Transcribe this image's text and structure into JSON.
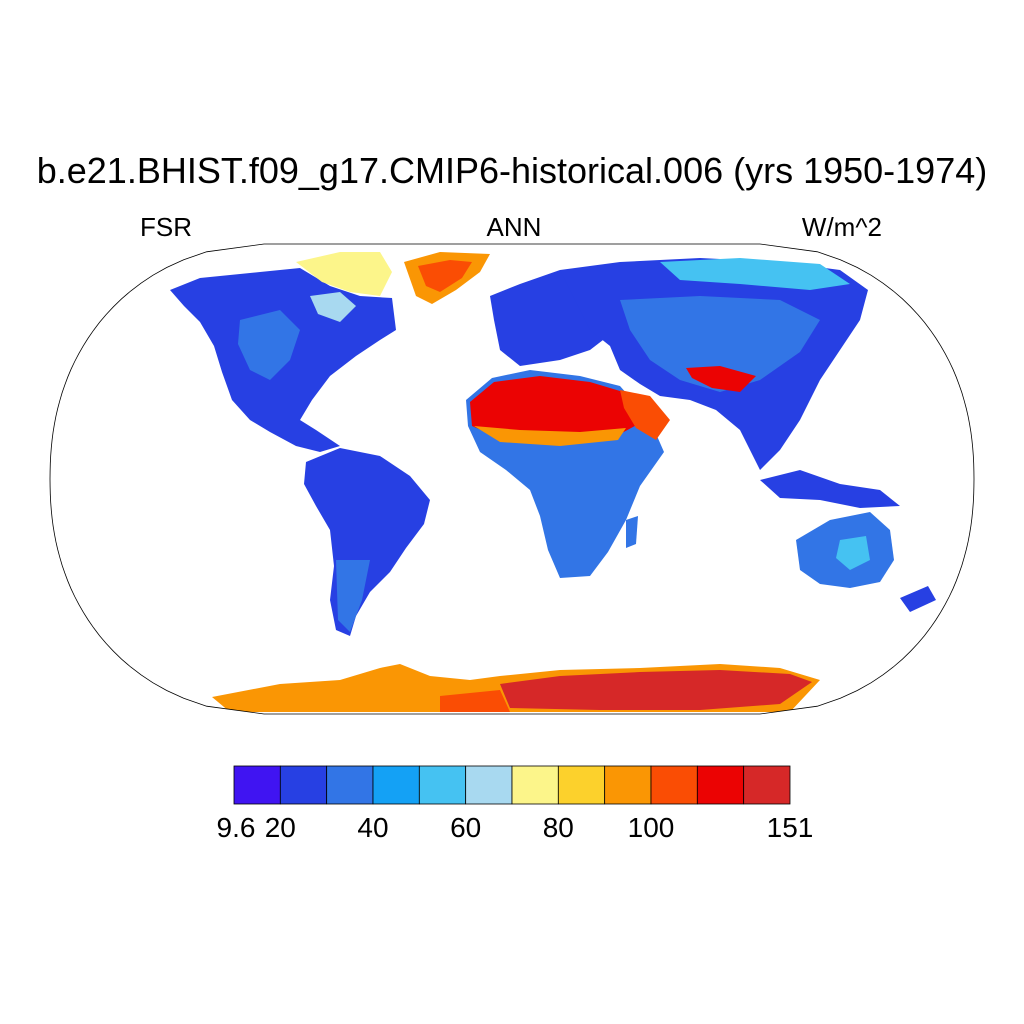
{
  "title": "b.e21.BHIST.f09_g17.CMIP6-historical.006 (yrs 1950-1974)",
  "variable": "FSR",
  "season": "ANN",
  "units": "W/m^2",
  "colorbar": {
    "colors": [
      "#4014f2",
      "#2740e3",
      "#3275e6",
      "#14a1f5",
      "#45c2f2",
      "#a8d9f0",
      "#fcf58a",
      "#fcd12c",
      "#fa9604",
      "#fa4d04",
      "#eb0303",
      "#d62828"
    ],
    "tick_labels": [
      "9.6",
      "20",
      "40",
      "60",
      "80",
      "100",
      "151"
    ]
  },
  "map": {
    "projection": "Robinson",
    "land_fill_colors": {
      "tropical": "#2740e3",
      "temperate": "#3275e6",
      "desert": "#eb0303",
      "greenland": "#fa4d04",
      "antarctica": "#d62828"
    }
  }
}
